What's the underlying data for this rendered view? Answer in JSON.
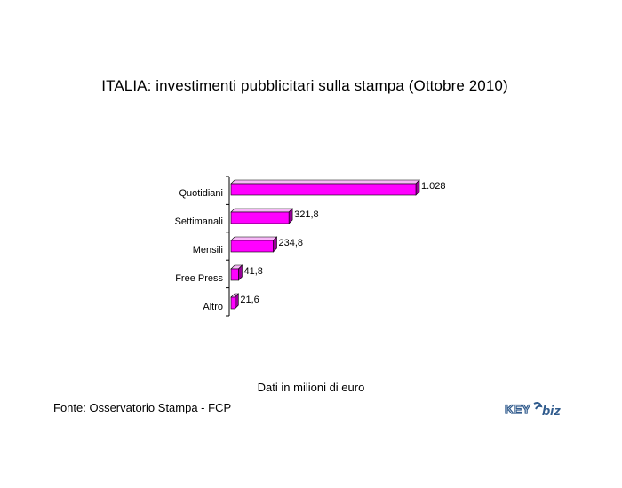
{
  "title": "ITALIA: investimenti pubblicitari sulla stampa (Ottobre 2010)",
  "unit_note": "Dati in milioni di euro",
  "source": "Fonte: Osservatorio Stampa - FCP",
  "logo": {
    "left": "KEY",
    "right": "biz"
  },
  "colors": {
    "bar_front": "#ff00ff",
    "bar_top": "#f7b8f7",
    "bar_side": "#990099",
    "axis": "#000000"
  },
  "chart_data": {
    "type": "bar",
    "orientation": "horizontal",
    "categories": [
      "Quotidiani",
      "Settimanali",
      "Mensili",
      "Free Press",
      "Altro"
    ],
    "values": [
      1028,
      321.8,
      234.8,
      41.8,
      21.6
    ],
    "value_labels": [
      "1.028",
      "321,8",
      "234,8",
      "41,8",
      "21,6"
    ],
    "xlim": [
      0,
      1028
    ],
    "grid": false,
    "legend": "none"
  }
}
